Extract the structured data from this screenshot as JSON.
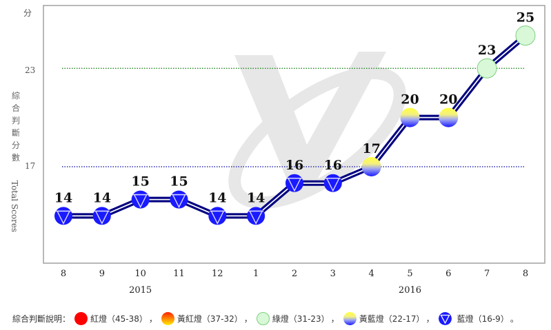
{
  "chart_data": {
    "type": "line",
    "title": "",
    "ylabel": "綜合判斷分數 Total Scores",
    "ylabel_cn": "綜合判斷分數",
    "ylabel_en": "Total Scores",
    "y_unit": "分",
    "xlabel": "",
    "x": [
      "8",
      "9",
      "10",
      "11",
      "12",
      "1",
      "2",
      "3",
      "4",
      "5",
      "6",
      "7",
      "8"
    ],
    "year_labels": [
      {
        "label": "2015",
        "at_index": 2
      },
      {
        "label": "2016",
        "at_index": 9
      }
    ],
    "series": [
      {
        "name": "Total Scores",
        "values": [
          14,
          14,
          15,
          15,
          14,
          14,
          16,
          16,
          17,
          20,
          20,
          23,
          25
        ],
        "signals": [
          "blue",
          "blue",
          "blue",
          "blue",
          "blue",
          "blue",
          "blue",
          "blue",
          "yellow-blue",
          "yellow-blue",
          "yellow-blue",
          "green",
          "green"
        ]
      }
    ],
    "reference_lines": [
      {
        "value": 23,
        "label": "23",
        "color": "#2e8b2e",
        "style": "dotted"
      },
      {
        "value": 17,
        "label": "17",
        "color": "#2a2ab0",
        "style": "dotted"
      }
    ],
    "grid": false,
    "legend_position": "bottom"
  },
  "legend": {
    "title": "綜合判斷說明：",
    "items": [
      {
        "key": "red",
        "label": "紅燈（45-38）",
        "sep": "，"
      },
      {
        "key": "yellow-red",
        "label": "黃紅燈（37-32）",
        "sep": "，"
      },
      {
        "key": "green",
        "label": "綠燈（31-23）",
        "sep": "，"
      },
      {
        "key": "yellow-blue",
        "label": "黃藍燈（22-17）",
        "sep": "，"
      },
      {
        "key": "blue",
        "label": "藍燈（16-9）",
        "sep": "。"
      }
    ]
  },
  "colors": {
    "line": "#000080",
    "blue": "#1a1aff",
    "green_fill": "#d8f8d8",
    "green_border": "#7ccf7c",
    "yellow": "#ffff33",
    "red": "#ff0000"
  }
}
